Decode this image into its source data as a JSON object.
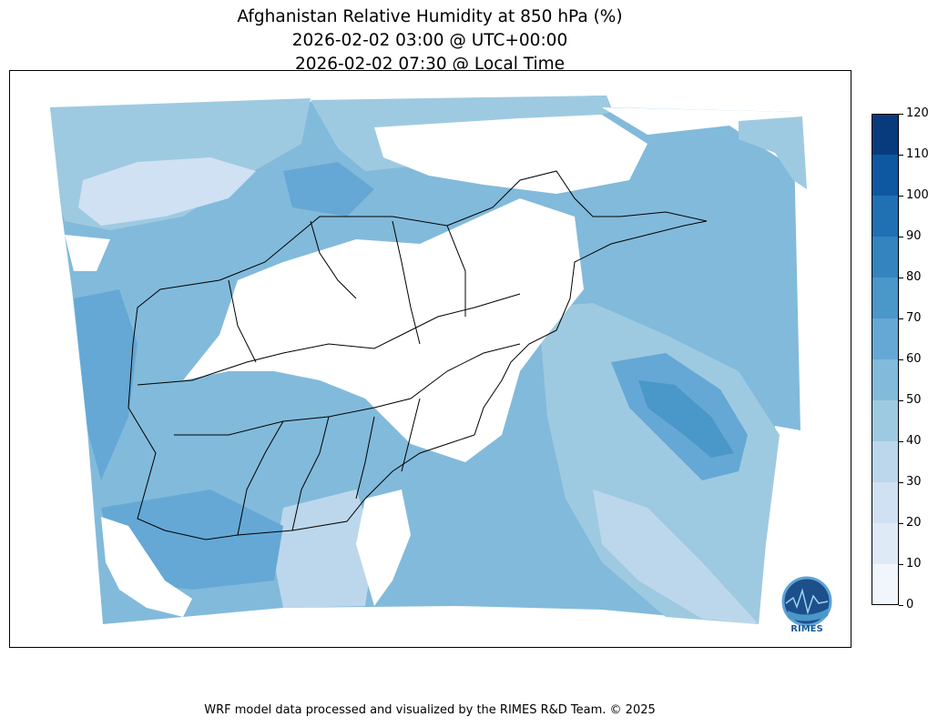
{
  "title": {
    "line1": "Afghanistan Relative Humidity at 850 hPa (%)",
    "line2": "2026-02-02 03:00 @ UTC+00:00",
    "line3": "2026-02-02 07:30 @ Local Time"
  },
  "colorbar": {
    "ticks": [
      "0",
      "10",
      "20",
      "30",
      "40",
      "50",
      "60",
      "70",
      "80",
      "90",
      "100",
      "110",
      "120"
    ],
    "colors": [
      "#f0f6fc",
      "#deebf7",
      "#cfe1f2",
      "#bcd7ec",
      "#9ecae1",
      "#82badb",
      "#65a8d5",
      "#4a97c9",
      "#3384bf",
      "#2070b4",
      "#0e58a2",
      "#083b7d"
    ]
  },
  "logo": {
    "text": "RIMES"
  },
  "footer": "WRF model data processed and visualized by the RIMES R&D Team. © 2025"
}
